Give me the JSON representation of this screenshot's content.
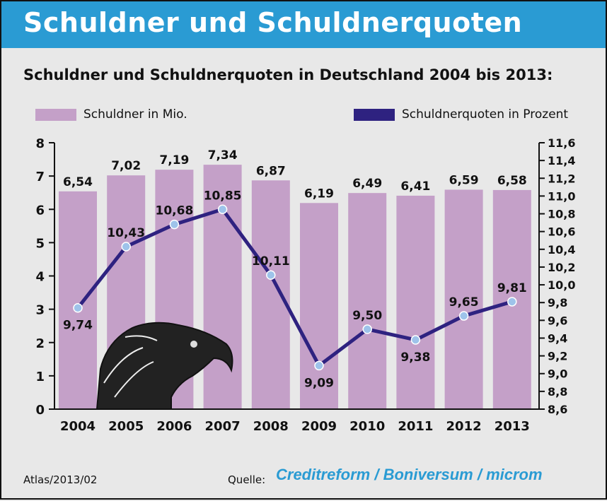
{
  "header": {
    "title": "Schuldner und Schuldnerquoten"
  },
  "chart_data": {
    "type": "bar",
    "title": "Schuldner und Schuldnerquoten in Deutschland 2004 bis 2013:",
    "categories": [
      "2004",
      "2005",
      "2006",
      "2007",
      "2008",
      "2009",
      "2010",
      "2011",
      "2012",
      "2013"
    ],
    "series": [
      {
        "name": "Schuldner in Mio.",
        "type": "bar",
        "axis": "left",
        "color": "#c4a0c8",
        "values": [
          6.54,
          7.02,
          7.19,
          7.34,
          6.87,
          6.19,
          6.49,
          6.41,
          6.59,
          6.58
        ],
        "labels": [
          "6,54",
          "7,02",
          "7,19",
          "7,34",
          "6,87",
          "6,19",
          "6,49",
          "6,41",
          "6,59",
          "6,58"
        ]
      },
      {
        "name": "Schuldnerquoten in Prozent",
        "type": "line",
        "axis": "right",
        "color": "#2e2280",
        "values": [
          9.74,
          10.43,
          10.68,
          10.85,
          10.11,
          9.09,
          9.5,
          9.38,
          9.65,
          9.81
        ],
        "labels": [
          "9,74",
          "10,43",
          "10,68",
          "10,85",
          "10,11",
          "9,09",
          "9,50",
          "9,38",
          "9,65",
          "9,81"
        ]
      }
    ],
    "ylim_left": [
      0,
      8
    ],
    "yticks_left": [
      "0",
      "1",
      "2",
      "3",
      "4",
      "5",
      "6",
      "7",
      "8"
    ],
    "ylim_right": [
      8.6,
      11.6
    ],
    "yticks_right": [
      "8,6",
      "8,8",
      "9,0",
      "9,2",
      "9,4",
      "9,6",
      "9,8",
      "10,0",
      "10,2",
      "10,4",
      "10,6",
      "10,8",
      "11,0",
      "11,2",
      "11,4",
      "11,6"
    ],
    "legend": "top",
    "grid": false
  },
  "footer": {
    "source_id": "Atlas/2013/02",
    "source_label": "Quelle:",
    "source_logo": "Creditreform / Boniversum / microm"
  }
}
